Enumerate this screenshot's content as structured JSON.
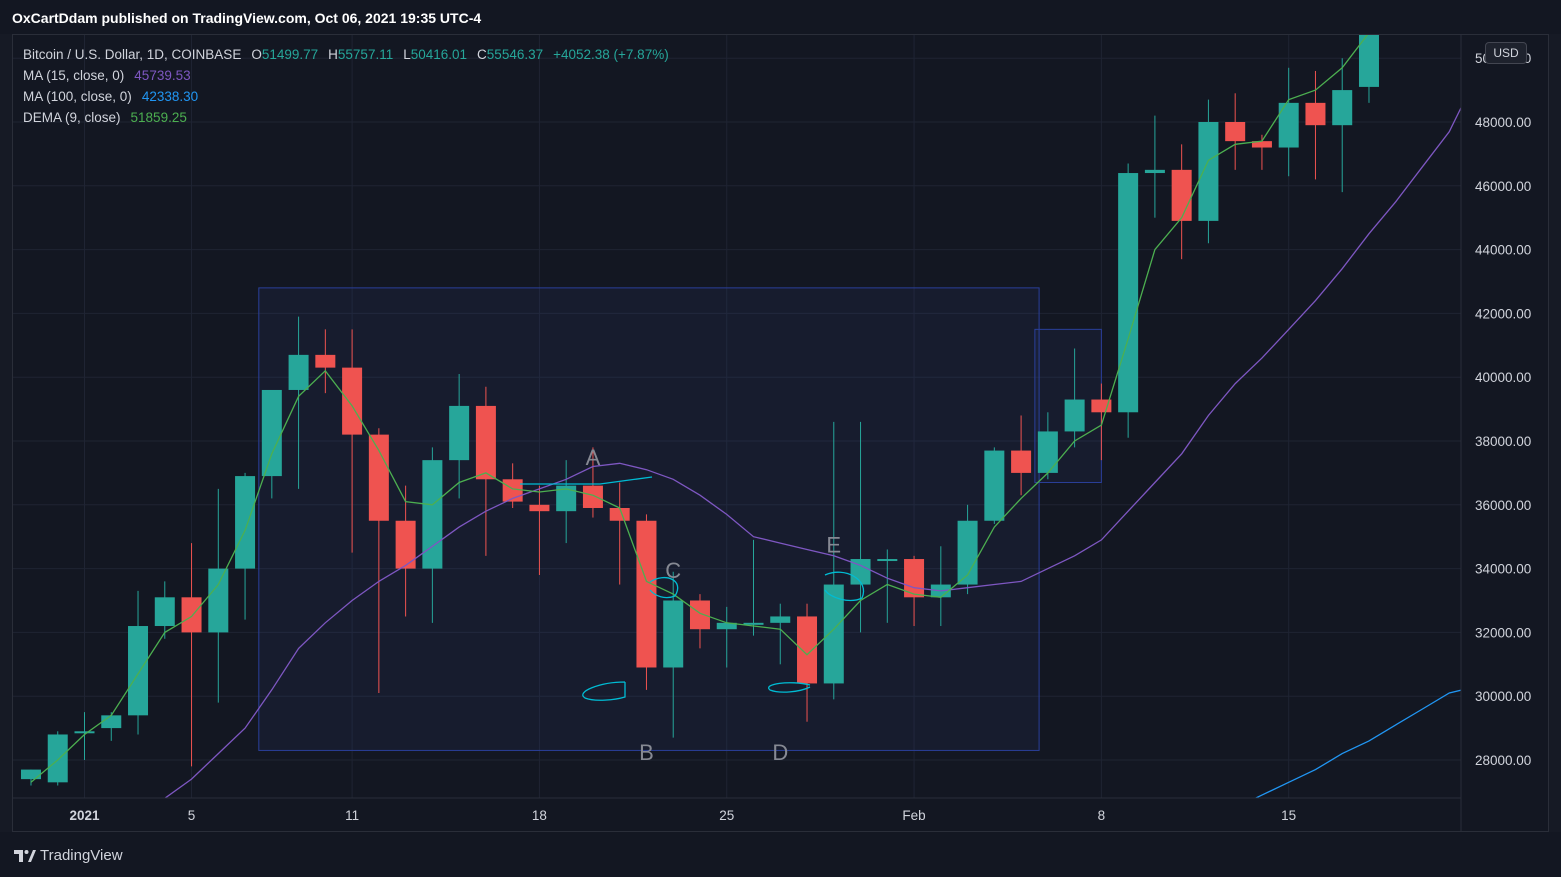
{
  "header": {
    "publisher_text": "OxCartDdam published on TradingView.com, Oct 06, 2021 19:35 UTC-4"
  },
  "legend": {
    "symbol": "Bitcoin / U.S. Dollar, 1D, COINBASE",
    "open_label": "O",
    "open": "51499.77",
    "high_label": "H",
    "high": "55757.11",
    "low_label": "L",
    "low": "50416.01",
    "close_label": "C",
    "close": "55546.37",
    "change": "+4052.38 (+7.87%)",
    "ma15_label": "MA (15, close, 0)",
    "ma15_value": "45739.53",
    "ma100_label": "MA (100, close, 0)",
    "ma100_value": "42338.30",
    "dema_label": "DEMA (9, close)",
    "dema_value": "51859.25"
  },
  "currency_button": "USD",
  "footer": {
    "brand": "TradingView",
    "brand_icon": "tradingview-logo-icon"
  },
  "colors": {
    "up": "#26a69a",
    "down": "#ef5350",
    "ma15": "#7e57c2",
    "ma100": "#2196f3",
    "dema": "#4caf50",
    "annotation": "#00bcd4",
    "box": "#2a3f9a"
  },
  "chart_data": {
    "type": "candlestick",
    "symbol": "Bitcoin / U.S. Dollar, 1D, COINBASE",
    "currency": "USD",
    "ylim": [
      26000,
      50800
    ],
    "y_ticks": [
      "28000.00",
      "30000.00",
      "32000.00",
      "34000.00",
      "36000.00",
      "38000.00",
      "40000.00",
      "42000.00",
      "44000.00",
      "46000.00",
      "48000.00",
      "50000.00"
    ],
    "x_tick_labels": [
      {
        "label": "2021",
        "date": "2021-01-01"
      },
      {
        "label": "5",
        "date": "2021-01-05"
      },
      {
        "label": "11",
        "date": "2021-01-11"
      },
      {
        "label": "18",
        "date": "2021-01-18"
      },
      {
        "label": "25",
        "date": "2021-01-25"
      },
      {
        "label": "Feb",
        "date": "2021-02-01"
      },
      {
        "label": "8",
        "date": "2021-02-08"
      },
      {
        "label": "15",
        "date": "2021-02-15"
      }
    ],
    "candles": [
      {
        "date": "2020-12-30",
        "o": 27400,
        "h": 27700,
        "l": 27200,
        "c": 27700
      },
      {
        "date": "2020-12-31",
        "o": 27300,
        "h": 28900,
        "l": 27200,
        "c": 28800
      },
      {
        "date": "2021-01-01",
        "o": 28900,
        "h": 29500,
        "l": 28000,
        "c": 28900
      },
      {
        "date": "2021-01-02",
        "o": 29000,
        "h": 29500,
        "l": 28600,
        "c": 29400
      },
      {
        "date": "2021-01-03",
        "o": 29400,
        "h": 33300,
        "l": 28800,
        "c": 32200
      },
      {
        "date": "2021-01-04",
        "o": 32200,
        "h": 33600,
        "l": 31800,
        "c": 33100
      },
      {
        "date": "2021-01-05",
        "o": 33100,
        "h": 34800,
        "l": 27800,
        "c": 32000
      },
      {
        "date": "2021-01-06",
        "o": 32000,
        "h": 36500,
        "l": 29800,
        "c": 34000
      },
      {
        "date": "2021-01-07",
        "o": 34000,
        "h": 37000,
        "l": 32400,
        "c": 36900
      },
      {
        "date": "2021-01-08",
        "o": 36900,
        "h": 39500,
        "l": 36200,
        "c": 39600
      },
      {
        "date": "2021-01-09",
        "o": 39600,
        "h": 41900,
        "l": 36500,
        "c": 40700
      },
      {
        "date": "2021-01-10",
        "o": 40700,
        "h": 41500,
        "l": 39500,
        "c": 40300
      },
      {
        "date": "2021-01-11",
        "o": 40300,
        "h": 41500,
        "l": 34500,
        "c": 38200
      },
      {
        "date": "2021-01-12",
        "o": 38200,
        "h": 38400,
        "l": 30100,
        "c": 35500
      },
      {
        "date": "2021-01-13",
        "o": 35500,
        "h": 36600,
        "l": 32500,
        "c": 34000
      },
      {
        "date": "2021-01-14",
        "o": 34000,
        "h": 37800,
        "l": 32300,
        "c": 37400
      },
      {
        "date": "2021-01-15",
        "o": 37400,
        "h": 40100,
        "l": 36200,
        "c": 39100
      },
      {
        "date": "2021-01-16",
        "o": 39100,
        "h": 39700,
        "l": 34400,
        "c": 36800
      },
      {
        "date": "2021-01-17",
        "o": 36800,
        "h": 37300,
        "l": 35900,
        "c": 36100
      },
      {
        "date": "2021-01-18",
        "o": 36000,
        "h": 36600,
        "l": 33800,
        "c": 35800
      },
      {
        "date": "2021-01-19",
        "o": 35800,
        "h": 37400,
        "l": 34800,
        "c": 36600
      },
      {
        "date": "2021-01-20",
        "o": 36600,
        "h": 37800,
        "l": 35600,
        "c": 35900
      },
      {
        "date": "2021-01-21",
        "o": 35900,
        "h": 36700,
        "l": 33500,
        "c": 35500
      },
      {
        "date": "2021-01-22",
        "o": 35500,
        "h": 35700,
        "l": 30200,
        "c": 30900
      },
      {
        "date": "2021-01-23",
        "o": 30900,
        "h": 33900,
        "l": 28700,
        "c": 33000
      },
      {
        "date": "2021-01-24",
        "o": 33000,
        "h": 33200,
        "l": 31500,
        "c": 32100
      },
      {
        "date": "2021-01-25",
        "o": 32100,
        "h": 32800,
        "l": 30900,
        "c": 32300
      },
      {
        "date": "2021-01-26",
        "o": 32300,
        "h": 34900,
        "l": 31900,
        "c": 32300
      },
      {
        "date": "2021-01-27",
        "o": 32300,
        "h": 32900,
        "l": 31000,
        "c": 32500
      },
      {
        "date": "2021-01-28",
        "o": 32500,
        "h": 32900,
        "l": 29200,
        "c": 30400
      },
      {
        "date": "2021-01-29",
        "o": 30400,
        "h": 38600,
        "l": 29900,
        "c": 33500
      },
      {
        "date": "2021-01-30",
        "o": 33500,
        "h": 38600,
        "l": 32000,
        "c": 34300
      },
      {
        "date": "2021-01-31",
        "o": 34300,
        "h": 34600,
        "l": 32300,
        "c": 34300
      },
      {
        "date": "2021-02-01",
        "o": 34300,
        "h": 34400,
        "l": 32200,
        "c": 33100
      },
      {
        "date": "2021-02-02",
        "o": 33100,
        "h": 34700,
        "l": 32200,
        "c": 33500
      },
      {
        "date": "2021-02-03",
        "o": 33500,
        "h": 36000,
        "l": 33200,
        "c": 35500
      },
      {
        "date": "2021-02-04",
        "o": 35500,
        "h": 37800,
        "l": 35400,
        "c": 37700
      },
      {
        "date": "2021-02-05",
        "o": 37700,
        "h": 38800,
        "l": 36300,
        "c": 37000
      },
      {
        "date": "2021-02-06",
        "o": 37000,
        "h": 38900,
        "l": 36800,
        "c": 38300
      },
      {
        "date": "2021-02-07",
        "o": 38300,
        "h": 40900,
        "l": 37800,
        "c": 39300
      },
      {
        "date": "2021-02-08",
        "o": 39300,
        "h": 39800,
        "l": 37400,
        "c": 38900
      },
      {
        "date": "2021-02-09",
        "o": 38900,
        "h": 46700,
        "l": 38100,
        "c": 46400
      },
      {
        "date": "2021-02-10",
        "o": 46400,
        "h": 48200,
        "l": 45000,
        "c": 46500
      },
      {
        "date": "2021-02-11",
        "o": 46500,
        "h": 47300,
        "l": 43700,
        "c": 44900
      },
      {
        "date": "2021-02-12",
        "o": 44900,
        "h": 48700,
        "l": 44200,
        "c": 48000
      },
      {
        "date": "2021-02-13",
        "o": 48000,
        "h": 48900,
        "l": 46500,
        "c": 47400
      },
      {
        "date": "2021-02-14",
        "o": 47400,
        "h": 47600,
        "l": 46500,
        "c": 47200
      },
      {
        "date": "2021-02-15",
        "o": 47200,
        "h": 49700,
        "l": 46300,
        "c": 48600
      },
      {
        "date": "2021-02-16",
        "o": 48600,
        "h": 49600,
        "l": 46200,
        "c": 47900
      },
      {
        "date": "2021-02-17",
        "o": 47900,
        "h": 50000,
        "l": 45800,
        "c": 49000
      },
      {
        "date": "2021-02-18",
        "o": 49100,
        "h": 51500,
        "l": 48600,
        "c": 51200
      }
    ],
    "series": [
      {
        "name": "MA (15, close, 0)",
        "color": "#7e57c2",
        "points": [
          [
            "2021-01-04",
            26800
          ],
          [
            "2021-01-05",
            27400
          ],
          [
            "2021-01-06",
            28200
          ],
          [
            "2021-01-07",
            29000
          ],
          [
            "2021-01-08",
            30200
          ],
          [
            "2021-01-09",
            31500
          ],
          [
            "2021-01-10",
            32300
          ],
          [
            "2021-01-11",
            33000
          ],
          [
            "2021-01-12",
            33600
          ],
          [
            "2021-01-13",
            34100
          ],
          [
            "2021-01-14",
            34700
          ],
          [
            "2021-01-15",
            35300
          ],
          [
            "2021-01-16",
            35800
          ],
          [
            "2021-01-17",
            36200
          ],
          [
            "2021-01-18",
            36500
          ],
          [
            "2021-01-19",
            36800
          ],
          [
            "2021-01-20",
            37200
          ],
          [
            "2021-01-21",
            37300
          ],
          [
            "2021-01-22",
            37100
          ],
          [
            "2021-01-23",
            36800
          ],
          [
            "2021-01-24",
            36300
          ],
          [
            "2021-01-25",
            35700
          ],
          [
            "2021-01-26",
            35000
          ],
          [
            "2021-01-27",
            34800
          ],
          [
            "2021-01-28",
            34600
          ],
          [
            "2021-01-29",
            34400
          ],
          [
            "2021-01-30",
            34100
          ],
          [
            "2021-01-31",
            33700
          ],
          [
            "2021-02-01",
            33400
          ],
          [
            "2021-02-02",
            33300
          ],
          [
            "2021-02-03",
            33400
          ],
          [
            "2021-02-04",
            33500
          ],
          [
            "2021-02-05",
            33600
          ],
          [
            "2021-02-06",
            34000
          ],
          [
            "2021-02-07",
            34400
          ],
          [
            "2021-02-08",
            34900
          ],
          [
            "2021-02-09",
            35800
          ],
          [
            "2021-02-10",
            36700
          ],
          [
            "2021-02-11",
            37600
          ],
          [
            "2021-02-12",
            38800
          ],
          [
            "2021-02-13",
            39800
          ],
          [
            "2021-02-14",
            40600
          ],
          [
            "2021-02-15",
            41500
          ],
          [
            "2021-02-16",
            42400
          ],
          [
            "2021-02-17",
            43400
          ],
          [
            "2021-02-18",
            44500
          ],
          [
            "2021-02-19",
            45500
          ],
          [
            "2021-02-20",
            46600
          ],
          [
            "2021-02-21",
            47700
          ],
          [
            "2021-02-22",
            49400
          ]
        ]
      },
      {
        "name": "MA (100, close, 0)",
        "color": "#2196f3",
        "points": [
          [
            "2021-02-12",
            26000
          ],
          [
            "2021-02-13",
            26500
          ],
          [
            "2021-02-14",
            26900
          ],
          [
            "2021-02-15",
            27300
          ],
          [
            "2021-02-16",
            27700
          ],
          [
            "2021-02-17",
            28200
          ],
          [
            "2021-02-18",
            28600
          ],
          [
            "2021-02-19",
            29100
          ],
          [
            "2021-02-20",
            29600
          ],
          [
            "2021-02-21",
            30100
          ],
          [
            "2021-02-22",
            30300
          ]
        ]
      },
      {
        "name": "DEMA (9, close)",
        "color": "#4caf50",
        "points": [
          [
            "2020-12-30",
            27300
          ],
          [
            "2020-12-31",
            28000
          ],
          [
            "2021-01-01",
            28800
          ],
          [
            "2021-01-02",
            29400
          ],
          [
            "2021-01-03",
            30700
          ],
          [
            "2021-01-04",
            32000
          ],
          [
            "2021-01-05",
            32500
          ],
          [
            "2021-01-06",
            33500
          ],
          [
            "2021-01-07",
            35200
          ],
          [
            "2021-01-08",
            37600
          ],
          [
            "2021-01-09",
            39400
          ],
          [
            "2021-01-10",
            40200
          ],
          [
            "2021-01-11",
            39100
          ],
          [
            "2021-01-12",
            37700
          ],
          [
            "2021-01-13",
            36100
          ],
          [
            "2021-01-14",
            36000
          ],
          [
            "2021-01-15",
            36700
          ],
          [
            "2021-01-16",
            37000
          ],
          [
            "2021-01-17",
            36500
          ],
          [
            "2021-01-18",
            36400
          ],
          [
            "2021-01-19",
            36500
          ],
          [
            "2021-01-20",
            36300
          ],
          [
            "2021-01-21",
            35900
          ],
          [
            "2021-01-22",
            33600
          ],
          [
            "2021-01-23",
            33200
          ],
          [
            "2021-01-24",
            32600
          ],
          [
            "2021-01-25",
            32300
          ],
          [
            "2021-01-26",
            32200
          ],
          [
            "2021-01-27",
            32100
          ],
          [
            "2021-01-28",
            31300
          ],
          [
            "2021-01-29",
            32100
          ],
          [
            "2021-01-30",
            33000
          ],
          [
            "2021-01-31",
            33500
          ],
          [
            "2021-02-01",
            33200
          ],
          [
            "2021-02-02",
            33100
          ],
          [
            "2021-02-03",
            33800
          ],
          [
            "2021-02-04",
            35300
          ],
          [
            "2021-02-05",
            36200
          ],
          [
            "2021-02-06",
            37000
          ],
          [
            "2021-02-07",
            38000
          ],
          [
            "2021-02-08",
            38500
          ],
          [
            "2021-02-09",
            41200
          ],
          [
            "2021-02-10",
            44000
          ],
          [
            "2021-02-11",
            45000
          ],
          [
            "2021-02-12",
            46800
          ],
          [
            "2021-02-13",
            47300
          ],
          [
            "2021-02-14",
            47400
          ],
          [
            "2021-02-15",
            48700
          ],
          [
            "2021-02-16",
            49000
          ],
          [
            "2021-02-17",
            49700
          ],
          [
            "2021-02-18",
            50800
          ]
        ]
      }
    ],
    "annotations": [
      {
        "label": "A",
        "date": "2021-01-20",
        "price": 37250
      },
      {
        "label": "B",
        "date": "2021-01-22",
        "price": 28000
      },
      {
        "label": "C",
        "date": "2021-01-23",
        "price": 33700
      },
      {
        "label": "D",
        "date": "2021-01-27",
        "price": 28000
      },
      {
        "label": "E",
        "date": "2021-01-29",
        "price": 34500
      }
    ],
    "shapes": [
      {
        "type": "rectangle",
        "from_date": "2021-01-08",
        "to_date": "2021-02-05",
        "top_price": 42800,
        "bottom_price": 28300
      },
      {
        "type": "rectangle",
        "from_date": "2021-02-06",
        "to_date": "2021-02-08",
        "top_price": 41500,
        "bottom_price": 36700
      }
    ]
  }
}
